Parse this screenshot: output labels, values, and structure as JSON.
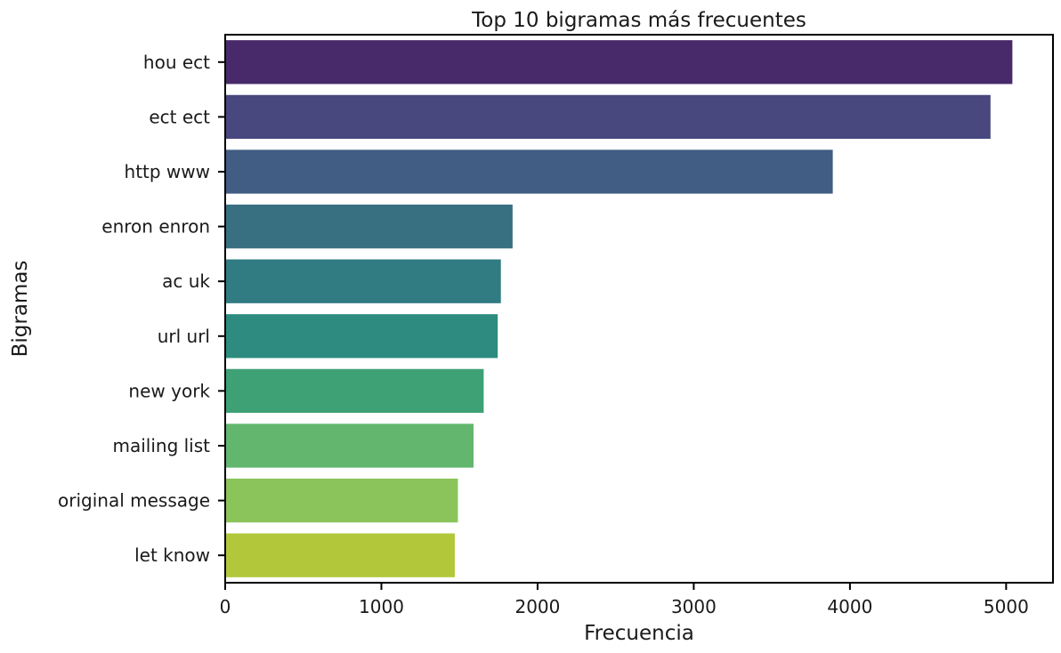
{
  "chart_data": {
    "type": "bar",
    "orientation": "horizontal",
    "title": "Top 10 bigramas más frecuentes",
    "xlabel": "Frecuencia",
    "ylabel": "Bigramas",
    "categories": [
      "hou ect",
      "ect ect",
      "http www",
      "enron enron",
      "ac uk",
      "url url",
      "new york",
      "mailing list",
      "original message",
      "let know"
    ],
    "values": [
      5040,
      4900,
      3890,
      1840,
      1765,
      1745,
      1655,
      1590,
      1490,
      1470
    ],
    "colors": [
      "#482a6a",
      "#48477e",
      "#415d83",
      "#387081",
      "#317b82",
      "#2d8b7f",
      "#3da175",
      "#62b66e",
      "#8ac45a",
      "#b2c83a"
    ],
    "xlim": [
      0,
      5300
    ],
    "xticks": [
      0,
      1000,
      2000,
      3000,
      4000,
      5000
    ],
    "xtick_labels": [
      "0",
      "1000",
      "2000",
      "3000",
      "4000",
      "5000"
    ],
    "grid": false,
    "legend": "none"
  }
}
